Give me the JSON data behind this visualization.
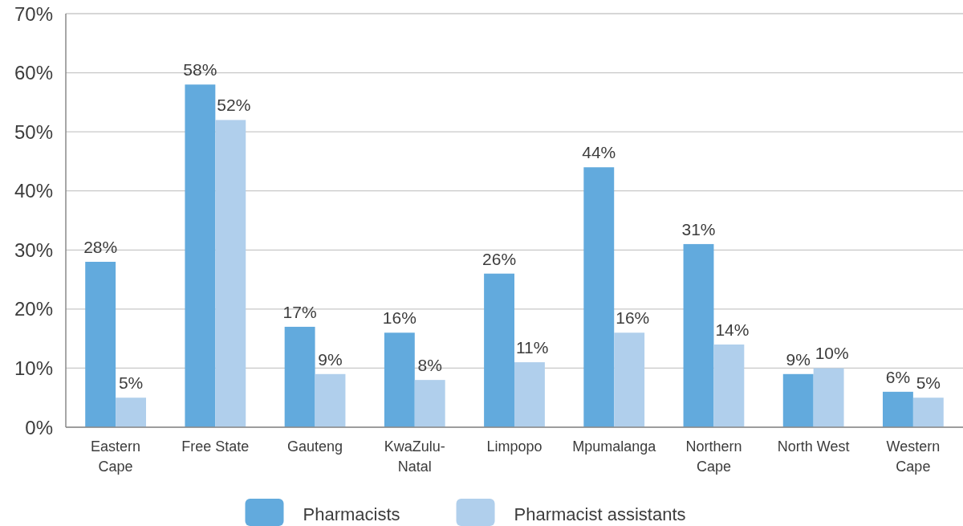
{
  "chart_data": {
    "type": "bar",
    "categories": [
      "Eastern Cape",
      "Free State",
      "Gauteng",
      "KwaZulu-Natal",
      "Limpopo",
      "Mpumalanga",
      "Northern Cape",
      "North West",
      "Western Cape"
    ],
    "series": [
      {
        "name": "Pharmacists",
        "color": "#62aadd",
        "values": [
          28,
          58,
          17,
          16,
          26,
          44,
          31,
          9,
          6
        ],
        "value_labels": [
          "28%",
          "58%",
          "17%",
          "16%",
          "26%",
          "44%",
          "31%",
          "9%",
          "6%"
        ]
      },
      {
        "name": "Pharmacist assistants",
        "color": "#b0cfec",
        "values": [
          5,
          52,
          9,
          8,
          11,
          16,
          14,
          10,
          5
        ],
        "value_labels": [
          "5%",
          "52%",
          "9%",
          "8%",
          "11%",
          "16%",
          "14%",
          "10%",
          "5%"
        ]
      }
    ],
    "ylim": [
      0,
      70
    ],
    "yticks": [
      {
        "value": 0,
        "label": "0%"
      },
      {
        "value": 10,
        "label": "10%"
      },
      {
        "value": 20,
        "label": "20%"
      },
      {
        "value": 30,
        "label": "30%"
      },
      {
        "value": 40,
        "label": "40%"
      },
      {
        "value": 50,
        "label": "50%"
      },
      {
        "value": 60,
        "label": "60%"
      },
      {
        "value": 70,
        "label": "70%"
      }
    ],
    "grid": "y",
    "legend": "bottom"
  }
}
